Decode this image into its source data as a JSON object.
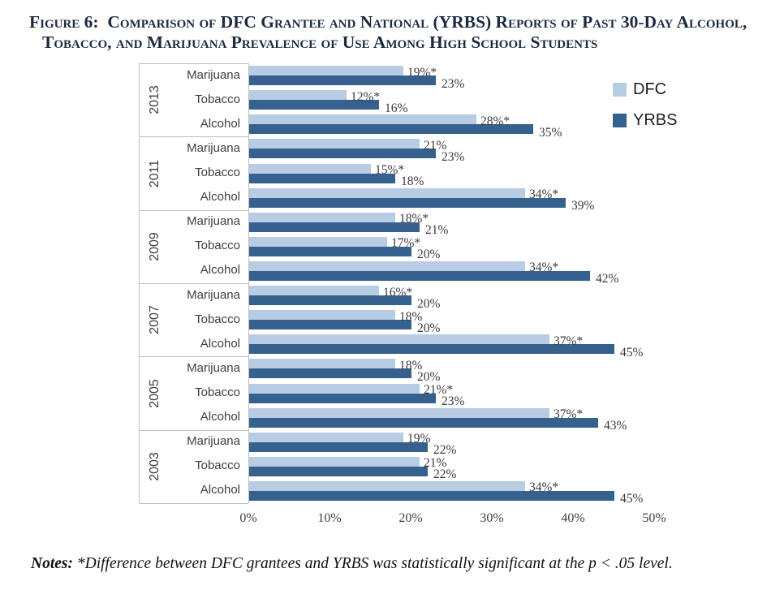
{
  "title": {
    "line1": "Figure 6:  Comparison of DFC Grantee and National (YRBS) Reports of Past 30-Day Alcohol,",
    "line2": "Tobacco, and Marijuana Prevalence of Use Among High School Students"
  },
  "legend": {
    "items": [
      {
        "label": "DFC",
        "color": "#b8cce4"
      },
      {
        "label": "YRBS",
        "color": "#36618e"
      }
    ]
  },
  "notes": {
    "label": "Notes:",
    "text": " *Difference between DFC grantees and YRBS was statistically significant at the p < .05 level."
  },
  "colors": {
    "dfc": "#b8cce4",
    "yrbs": "#36618e",
    "grid": "#bfbfbf",
    "title_text": "#1c2a40"
  },
  "chart_data": {
    "type": "bar",
    "orientation": "horizontal",
    "title": "Comparison of DFC Grantee and National (YRBS) Reports of Past 30-Day Alcohol, Tobacco, and Marijuana Prevalence of Use Among High School Students",
    "xlabel": "",
    "ylabel": "",
    "xlim": [
      0,
      50
    ],
    "xtick_labels": [
      "0%",
      "10%",
      "20%",
      "30%",
      "40%",
      "50%"
    ],
    "xtick_values": [
      0,
      10,
      20,
      30,
      40,
      50
    ],
    "legend_position": "top-right",
    "grid": false,
    "series_names": [
      "DFC",
      "YRBS"
    ],
    "groups": [
      {
        "year": "2013",
        "rows": [
          {
            "category": "Marijuana",
            "DFC": 19,
            "DFC_label": "19%*",
            "YRBS": 23,
            "YRBS_label": "23%"
          },
          {
            "category": "Tobacco",
            "DFC": 12,
            "DFC_label": "12%*",
            "YRBS": 16,
            "YRBS_label": "16%"
          },
          {
            "category": "Alcohol",
            "DFC": 28,
            "DFC_label": "28%*",
            "YRBS": 35,
            "YRBS_label": "35%"
          }
        ]
      },
      {
        "year": "2011",
        "rows": [
          {
            "category": "Marijuana",
            "DFC": 21,
            "DFC_label": "21%",
            "YRBS": 23,
            "YRBS_label": "23%"
          },
          {
            "category": "Tobacco",
            "DFC": 15,
            "DFC_label": "15%*",
            "YRBS": 18,
            "YRBS_label": "18%"
          },
          {
            "category": "Alcohol",
            "DFC": 34,
            "DFC_label": "34%*",
            "YRBS": 39,
            "YRBS_label": "39%"
          }
        ]
      },
      {
        "year": "2009",
        "rows": [
          {
            "category": "Marijuana",
            "DFC": 18,
            "DFC_label": "18%*",
            "YRBS": 21,
            "YRBS_label": "21%"
          },
          {
            "category": "Tobacco",
            "DFC": 17,
            "DFC_label": "17%*",
            "YRBS": 20,
            "YRBS_label": "20%"
          },
          {
            "category": "Alcohol",
            "DFC": 34,
            "DFC_label": "34%*",
            "YRBS": 42,
            "YRBS_label": "42%"
          }
        ]
      },
      {
        "year": "2007",
        "rows": [
          {
            "category": "Marijuana",
            "DFC": 16,
            "DFC_label": "16%*",
            "YRBS": 20,
            "YRBS_label": "20%"
          },
          {
            "category": "Tobacco",
            "DFC": 18,
            "DFC_label": "18%",
            "YRBS": 20,
            "YRBS_label": "20%"
          },
          {
            "category": "Alcohol",
            "DFC": 37,
            "DFC_label": "37%*",
            "YRBS": 45,
            "YRBS_label": "45%"
          }
        ]
      },
      {
        "year": "2005",
        "rows": [
          {
            "category": "Marijuana",
            "DFC": 18,
            "DFC_label": "18%",
            "YRBS": 20,
            "YRBS_label": "20%"
          },
          {
            "category": "Tobacco",
            "DFC": 21,
            "DFC_label": "21%*",
            "YRBS": 23,
            "YRBS_label": "23%"
          },
          {
            "category": "Alcohol",
            "DFC": 37,
            "DFC_label": "37%*",
            "YRBS": 43,
            "YRBS_label": "43%"
          }
        ]
      },
      {
        "year": "2003",
        "rows": [
          {
            "category": "Marijuana",
            "DFC": 19,
            "DFC_label": "19%",
            "YRBS": 22,
            "YRBS_label": "22%"
          },
          {
            "category": "Tobacco",
            "DFC": 21,
            "DFC_label": "21%",
            "YRBS": 22,
            "YRBS_label": "22%"
          },
          {
            "category": "Alcohol",
            "DFC": 34,
            "DFC_label": "34%*",
            "YRBS": 45,
            "YRBS_label": "45%"
          }
        ]
      }
    ]
  }
}
